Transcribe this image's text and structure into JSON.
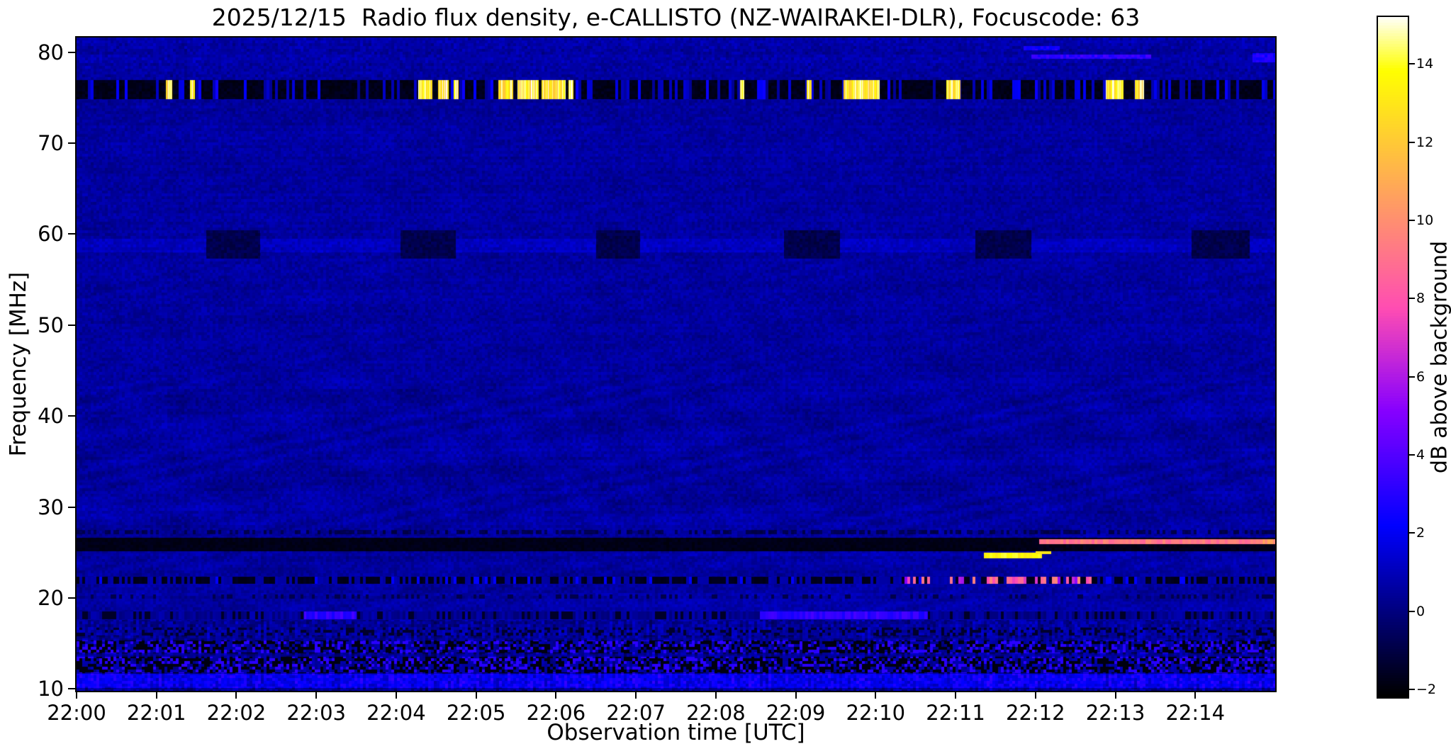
{
  "chart_data": {
    "type": "heatmap",
    "title": "2025/12/15  Radio flux density, e-CALLISTO (NZ-WAIRAKEI-DLR), Focuscode: 63",
    "xlabel": "Observation time [UTC]",
    "ylabel": "Frequency [MHz]",
    "x_range_minutes": [
      0,
      15
    ],
    "x_ticks": [
      {
        "t": 0,
        "label": "22:00"
      },
      {
        "t": 1,
        "label": "22:01"
      },
      {
        "t": 2,
        "label": "22:02"
      },
      {
        "t": 3,
        "label": "22:03"
      },
      {
        "t": 4,
        "label": "22:04"
      },
      {
        "t": 5,
        "label": "22:05"
      },
      {
        "t": 6,
        "label": "22:06"
      },
      {
        "t": 7,
        "label": "22:07"
      },
      {
        "t": 8,
        "label": "22:08"
      },
      {
        "t": 9,
        "label": "22:09"
      },
      {
        "t": 10,
        "label": "22:10"
      },
      {
        "t": 11,
        "label": "22:11"
      },
      {
        "t": 12,
        "label": "22:12"
      },
      {
        "t": 13,
        "label": "22:13"
      },
      {
        "t": 14,
        "label": "22:14"
      }
    ],
    "freq_range": [
      9.8,
      81.6
    ],
    "y_ticks": [
      {
        "f": 80,
        "label": "80"
      },
      {
        "f": 70,
        "label": "70"
      },
      {
        "f": 60,
        "label": "60"
      },
      {
        "f": 50,
        "label": "50"
      },
      {
        "f": 40,
        "label": "40"
      },
      {
        "f": 30,
        "label": "30"
      },
      {
        "f": 20,
        "label": "20"
      },
      {
        "f": 10,
        "label": "10"
      }
    ],
    "value_range": [
      -2.2,
      15.2
    ],
    "colormap": "gnuplot2",
    "background_level_db": 0.55,
    "colorbar": {
      "label": "dB above background",
      "ticks": [
        {
          "v": 14,
          "label": "14"
        },
        {
          "v": 12,
          "label": "12"
        },
        {
          "v": 10,
          "label": "10"
        },
        {
          "v": 8,
          "label": "8"
        },
        {
          "v": 6,
          "label": "6"
        },
        {
          "v": 4,
          "label": "4"
        },
        {
          "v": 2,
          "label": "2"
        },
        {
          "v": 0,
          "label": "0"
        },
        {
          "v": -2,
          "label": "−2"
        }
      ]
    },
    "features": {
      "seam": {
        "t": 7.3,
        "add": 0.12,
        "f_below": 28
      },
      "rfi_band_76": {
        "f": [
          74.85,
          76.95
        ],
        "base_value": -2.0,
        "speckle": {
          "prob": 0.3,
          "value": [
            0.3,
            2.5
          ]
        },
        "bursts": [
          [
            1.12,
            1.2
          ],
          [
            1.42,
            1.48
          ],
          [
            4.28,
            4.45
          ],
          [
            4.52,
            4.66
          ],
          [
            4.72,
            4.78
          ],
          [
            5.28,
            5.46
          ],
          [
            5.52,
            5.78
          ],
          [
            5.82,
            6.12
          ],
          [
            6.16,
            6.22
          ],
          [
            8.3,
            8.36
          ],
          [
            9.14,
            9.2
          ],
          [
            9.6,
            10.05
          ],
          [
            10.88,
            11.06
          ],
          [
            12.88,
            13.1
          ],
          [
            13.24,
            13.36
          ]
        ],
        "burst_value": 13.5
      },
      "band_59": {
        "glow_f": [
          58.0,
          59.5
        ],
        "glow_add": 0.5,
        "patch_f": [
          57.3,
          60.4
        ],
        "patch_value": -0.85,
        "patches": [
          [
            1.62,
            2.3
          ],
          [
            4.05,
            4.75
          ],
          [
            6.5,
            7.05
          ],
          [
            8.85,
            9.55
          ],
          [
            11.25,
            11.95
          ],
          [
            13.95,
            14.68
          ]
        ]
      },
      "dashed_line_27": {
        "f": [
          27.0,
          27.5
        ],
        "duty": 0.5,
        "value": -0.8
      },
      "black_line_26": {
        "f": [
          25.15,
          26.65
        ],
        "value": -1.95
      },
      "pink_line": {
        "f": [
          25.9,
          26.5
        ],
        "t": [
          12.05,
          15.0
        ],
        "value": 9.2,
        "end_boost_t": 14.85,
        "end_boost": 1.2
      },
      "yellow_segment": {
        "f": [
          24.35,
          24.95
        ],
        "t": [
          11.35,
          12.08
        ],
        "value": 13.6,
        "step": {
          "f": [
            24.8,
            25.15
          ],
          "t": [
            12.0,
            12.2
          ],
          "value": 13.0
        }
      },
      "dashed_line_22": {
        "f": [
          21.55,
          22.35
        ],
        "duty": 0.55,
        "dark_value": -1.85,
        "pink_speckle": {
          "t": [
            10.35,
            12.7
          ],
          "prob": 0.45,
          "value": [
            5.0,
            10.0
          ]
        },
        "blue_speckle": {
          "prob": 0.1,
          "value": 2.2
        }
      },
      "dash_row_20": {
        "f": [
          19.9,
          20.4
        ],
        "duty": 0.3,
        "value": -0.9
      },
      "band_18": {
        "f": [
          17.65,
          18.55
        ],
        "blue_patches": [
          [
            2.85,
            3.5
          ],
          [
            8.55,
            10.65
          ]
        ],
        "patch_value": 2.6
      },
      "bottom_noise": {
        "f_top": 17.6,
        "heavy_rows": [
          [
            11.75,
            13.55
          ],
          [
            13.95,
            15.35
          ]
        ],
        "bright_row": [
          10.15,
          11.7
        ],
        "dark_row_16": [
          15.8,
          16.7
        ],
        "dark_dash_value": -1.9,
        "bright_value": 2.2
      },
      "top_streaks": [
        {
          "f": [
            79.3,
            79.75
          ],
          "t": [
            11.95,
            13.45
          ],
          "value": 3.2
        },
        {
          "f": [
            80.2,
            80.7
          ],
          "t": [
            11.85,
            12.3
          ],
          "value": 2.6
        },
        {
          "f": [
            78.9,
            79.9
          ],
          "t": [
            14.72,
            15.0
          ],
          "value": 2.8
        }
      ]
    }
  },
  "layout_colors": {
    "figure_bg": "#ffffff",
    "axis_color": "#000000",
    "background_navy": "#000080",
    "hot_pink": "#ff7a9a",
    "burst_yellow": "#ffff66"
  }
}
